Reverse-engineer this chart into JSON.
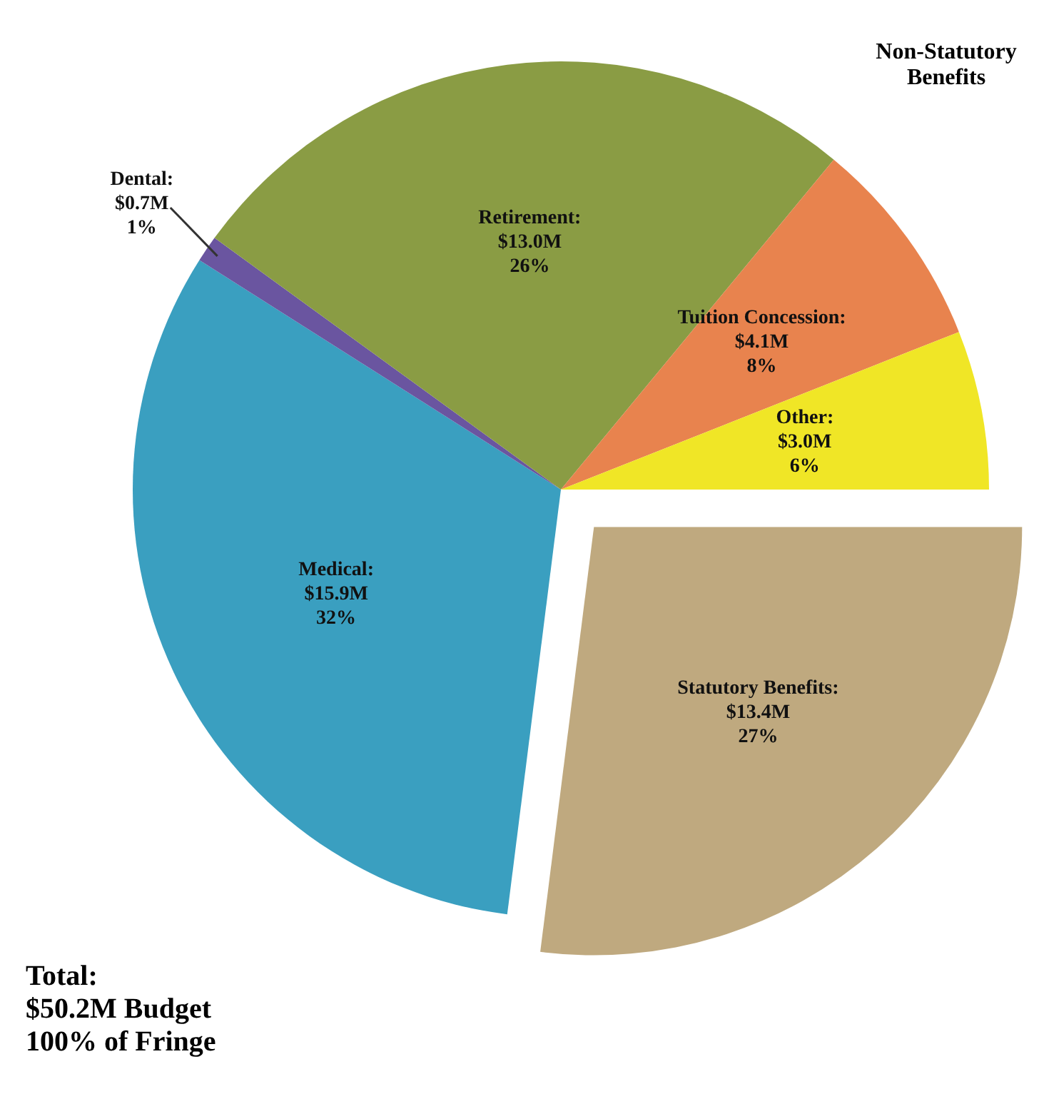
{
  "chart_data": {
    "type": "pie",
    "categories": [
      "Statutory Benefits",
      "Medical",
      "Dental",
      "Retirement",
      "Tuition Concession",
      "Other"
    ],
    "values": [
      27,
      32,
      1,
      26,
      8,
      6
    ],
    "value_labels": [
      ":\n$13.4M\n27%",
      ":\n$15.9M\n32%",
      ":\n$0.7M\n1%",
      ":\n$13.0M\n26%",
      ":\n$4.1M\n8%",
      ":\n$3.0M\n6%"
    ],
    "colors": [
      "#bfa97f",
      "#3a9fc0",
      "#6a55a0",
      "#8a9c44",
      "#e8834e",
      "#f0e626"
    ],
    "annotations": [
      "Non-Statutory Benefits",
      "Total:\n$50.2M Budget\n100% of Fringe"
    ],
    "legend": false
  }
}
